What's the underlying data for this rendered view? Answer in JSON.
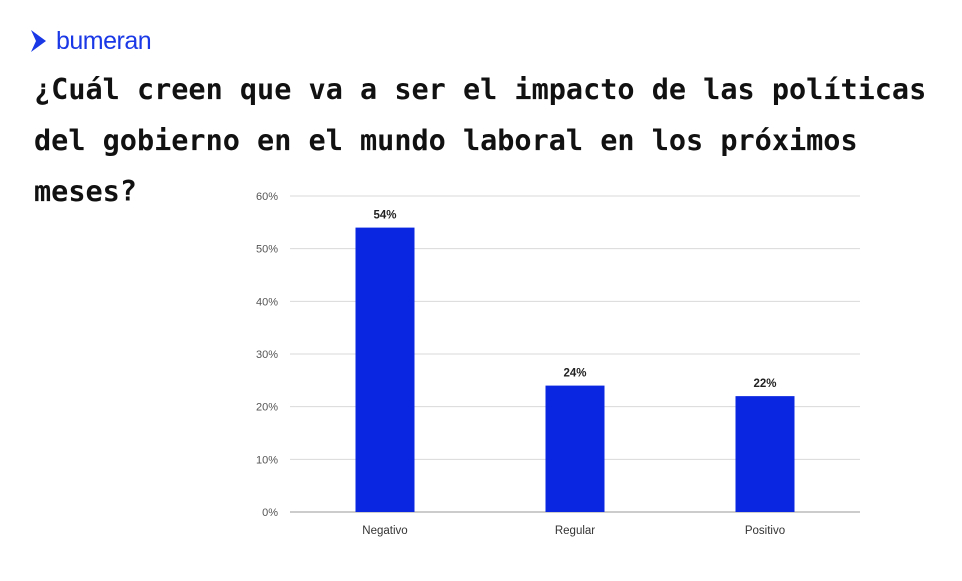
{
  "brand": {
    "name": "bumeran",
    "logo_icon": "chevron-right-icon",
    "color": "#1a38e6"
  },
  "question": "¿Cuál creen que va a ser el impacto de las políticas del gobierno en el mundo laboral en los próximos meses?",
  "chart_data": {
    "type": "bar",
    "title": "¿Cuál creen que va a ser el impacto de las políticas del gobierno en el mundo laboral en los próximos meses?",
    "categories": [
      "Negativo",
      "Regular",
      "Positivo"
    ],
    "values": [
      54,
      24,
      22
    ],
    "data_labels": [
      "54%",
      "24%",
      "22%"
    ],
    "ytick_labels": [
      "0%",
      "10%",
      "20%",
      "30%",
      "40%",
      "50%",
      "60%"
    ],
    "ylim": [
      0,
      60
    ],
    "xlabel": "",
    "ylabel": "",
    "grid": true,
    "bar_color": "#0a26e0",
    "grid_color": "#d9d9d9"
  }
}
